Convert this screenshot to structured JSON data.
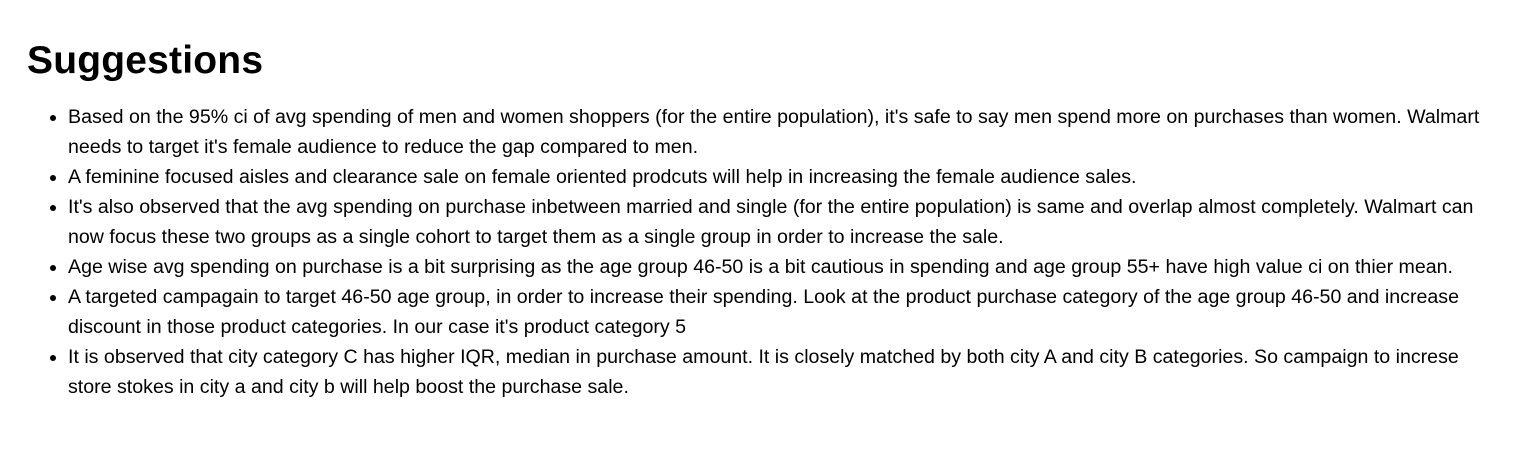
{
  "section": {
    "title": "Suggestions",
    "items": [
      "Based on the 95% ci of avg spending of men and women shoppers (for the entire population), it's safe to say men spend more on purchases than women. Walmart needs to target it's female audience to reduce the gap compared to men.",
      "A feminine focused aisles and clearance sale on female oriented prodcuts will help in increasing the female audience sales.",
      "It's also observed that the avg spending on purchase inbetween married and single (for the entire population) is same and overlap almost completely. Walmart can now focus these two groups as a single cohort to target them as a single group in order to increase the sale.",
      "Age wise avg spending on purchase is a bit surprising as the age group 46-50 is a bit cautious in spending and age group 55+ have high value ci on thier mean.",
      "A targeted campagain to target 46-50 age group, in order to increase their spending. Look at the product purchase category of the age group 46-50 and increase discount in those product categories. In our case it's product category 5",
      "It is observed that city category C has higher IQR, median in purchase amount. It is closely matched by both city A and city B categories. So campaign to increse store stokes in city a and city b will help boost the purchase sale."
    ]
  }
}
